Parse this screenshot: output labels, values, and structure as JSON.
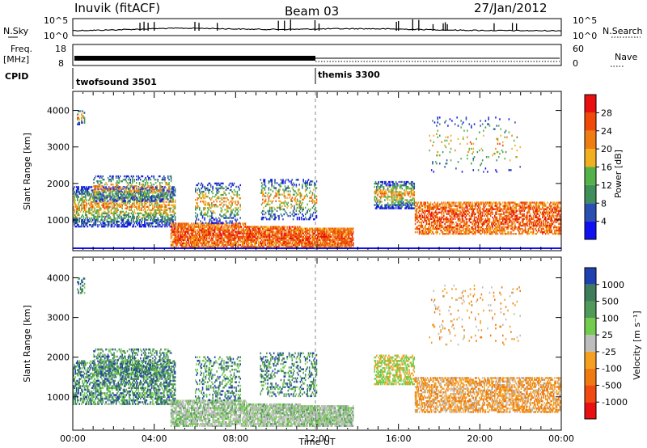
{
  "header": {
    "station": "Inuvik (fitACF)",
    "beam": "Beam 03",
    "date": "27/Jan/2012"
  },
  "status_panels": {
    "nsky_label": "N.Sky",
    "nsearch_label": "N.Search",
    "nsky_ticks": [
      "10^5",
      "10^0"
    ],
    "nsearch_ticks": [
      "10^5",
      "10^0"
    ],
    "freq_label_1": "Freq.",
    "freq_label_2": "[MHz]",
    "freq_ticks": [
      "18",
      "8"
    ],
    "nave_label": "Nave",
    "nave_ticks": [
      "60",
      "0"
    ],
    "cpid_label": "CPID",
    "cpid_segments": [
      {
        "name": "twofsound 3501",
        "start_hour": 0,
        "end_hour": 12
      },
      {
        "name": "themis 3300",
        "start_hour": 12,
        "end_hour": 24
      }
    ]
  },
  "chart_data": [
    {
      "type": "heatmap",
      "name": "power-panel",
      "ylabel": "Slant Range [km]",
      "xlabel": "",
      "x_range_hours": [
        0,
        24
      ],
      "ylim": [
        180,
        4500
      ],
      "y_ticks": [
        1000,
        2000,
        3000,
        4000
      ],
      "colorbar": {
        "label": "Power [dB]",
        "ticks": [
          4,
          8,
          12,
          16,
          20,
          24,
          28
        ],
        "colors": [
          "#1010f0",
          "#2a4fb0",
          "#3f8f5a",
          "#55b24a",
          "#f0b020",
          "#f07d10",
          "#f04a08",
          "#e81010"
        ]
      }
    },
    {
      "type": "heatmap",
      "name": "velocity-panel",
      "ylabel": "Slant Range [km]",
      "xlabel": "Time UT",
      "x_range_hours": [
        0,
        24
      ],
      "x_ticks": [
        "00:00",
        "04:00",
        "08:00",
        "12:00",
        "16:00",
        "20:00",
        "00:00"
      ],
      "ylim": [
        180,
        4500
      ],
      "y_ticks": [
        1000,
        2000,
        3000,
        4000
      ],
      "colorbar": {
        "label": "Velocity [m s⁻¹]",
        "ticks": [
          "1000",
          "500",
          "100",
          "25",
          "-25",
          "-100",
          "-500",
          "-1000"
        ],
        "colors": [
          "#2040b0",
          "#3e7c5c",
          "#4f9a58",
          "#73cd4c",
          "#bdbdbd",
          "#f5a020",
          "#ef7a10",
          "#f04a10",
          "#e81010"
        ]
      }
    }
  ]
}
